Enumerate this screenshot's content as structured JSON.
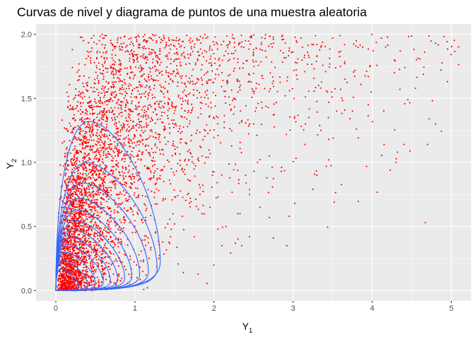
{
  "chart_data": {
    "type": "scatter",
    "title": "Curvas de nivel y diagrama de puntos de una muestra aleatoria",
    "xlabel": {
      "base": "Y",
      "sub": "1"
    },
    "ylabel": {
      "base": "Y",
      "sub": "2"
    },
    "xlim": [
      -0.25,
      5.25
    ],
    "ylim": [
      -0.08,
      2.08
    ],
    "x_ticks": [
      0,
      1,
      2,
      3,
      4,
      5
    ],
    "x_tick_labels": [
      "0",
      "1",
      "2",
      "3",
      "4",
      "5"
    ],
    "y_ticks": [
      0.0,
      0.5,
      1.0,
      1.5,
      2.0
    ],
    "y_tick_labels": [
      "0.0",
      "0.5",
      "1.0",
      "1.5",
      "2.0"
    ],
    "grid": true,
    "colors": {
      "panel": "#ebebeb",
      "grid_major": "#ffffff",
      "points": "#ff0000",
      "contours": "#3366ff"
    },
    "series": [
      {
        "kind": "contour",
        "levels": [
          {
            "x_max": 0.42,
            "y_max": 1.32
          },
          {
            "x_max": 0.38,
            "y_max": 1.0
          },
          {
            "x_max": 0.34,
            "y_max": 0.84
          },
          {
            "x_max": 0.3,
            "y_max": 0.72
          },
          {
            "x_max": 0.27,
            "y_max": 0.63
          },
          {
            "x_max": 0.24,
            "y_max": 0.55
          },
          {
            "x_max": 0.21,
            "y_max": 0.48
          },
          {
            "x_max": 0.18,
            "y_max": 0.42
          },
          {
            "x_max": 0.15,
            "y_max": 0.36
          },
          {
            "x_max": 0.12,
            "y_max": 0.3
          },
          {
            "x_max": 0.09,
            "y_max": 0.24
          },
          {
            "x_max": 0.06,
            "y_max": 0.17
          }
        ],
        "x_extent": [
          1.32,
          1.28,
          1.17,
          1.06,
          0.96,
          0.87,
          0.78,
          0.69,
          0.6,
          0.5,
          0.4,
          0.29
        ]
      },
      {
        "kind": "points",
        "sample_size": 4500,
        "points": [
          [
            0.35,
            1.95
          ],
          [
            0.45,
            1.97
          ],
          [
            0.55,
            1.95
          ],
          [
            0.7,
            1.93
          ],
          [
            0.95,
            1.97
          ],
          [
            1.05,
            1.98
          ],
          [
            1.2,
            1.97
          ],
          [
            1.35,
            1.95
          ],
          [
            1.55,
            1.95
          ],
          [
            1.9,
            1.97
          ],
          [
            2.2,
            1.93
          ],
          [
            2.5,
            1.88
          ],
          [
            2.75,
            1.93
          ],
          [
            2.95,
            1.87
          ],
          [
            3.1,
            1.97
          ],
          [
            3.3,
            1.92
          ],
          [
            3.5,
            1.97
          ],
          [
            3.65,
            1.92
          ],
          [
            4.17,
            1.9
          ],
          [
            4.87,
            1.72
          ],
          [
            4.95,
            1.63
          ],
          [
            3.95,
            1.67
          ],
          [
            3.2,
            1.82
          ],
          [
            2.65,
            1.87
          ],
          [
            2.3,
            1.78
          ],
          [
            2.1,
            1.7
          ],
          [
            1.75,
            1.9
          ],
          [
            1.5,
            1.8
          ],
          [
            1.25,
            1.75
          ],
          [
            4.35,
            1.57
          ],
          [
            4.45,
            1.49
          ],
          [
            3.6,
            1.57
          ],
          [
            3.45,
            1.47
          ],
          [
            3.55,
            1.4
          ],
          [
            3.75,
            1.4
          ],
          [
            3.95,
            1.45
          ],
          [
            2.9,
            1.52
          ],
          [
            2.75,
            1.37
          ],
          [
            2.6,
            1.47
          ],
          [
            2.45,
            1.3
          ],
          [
            2.2,
            1.45
          ],
          [
            3.2,
            1.35
          ],
          [
            3.35,
            1.25
          ],
          [
            3.8,
            1.26
          ],
          [
            3.15,
            1.14
          ],
          [
            3.45,
            1.18
          ],
          [
            4.15,
            1.14
          ],
          [
            4.4,
            1.14
          ],
          [
            4.7,
            1.14
          ],
          [
            4.72,
            1.34
          ],
          [
            4.8,
            1.3
          ],
          [
            4.3,
            1.0
          ],
          [
            4.32,
            1.08
          ],
          [
            3.45,
            1.02
          ],
          [
            3.42,
            0.97
          ],
          [
            3.3,
            0.9
          ],
          [
            3.25,
            0.79
          ],
          [
            2.85,
            0.93
          ],
          [
            2.7,
            1.05
          ],
          [
            2.55,
            1.0
          ],
          [
            2.4,
            0.9
          ],
          [
            2.2,
            0.88
          ],
          [
            2.45,
            0.75
          ],
          [
            2.58,
            0.65
          ],
          [
            2.7,
            0.57
          ],
          [
            2.75,
            0.41
          ],
          [
            2.45,
            0.42
          ],
          [
            2.35,
            0.35
          ],
          [
            2.27,
            0.37
          ],
          [
            2.95,
            0.58
          ],
          [
            3.02,
            0.68
          ],
          [
            3.52,
            0.69
          ],
          [
            4.67,
            0.53
          ],
          [
            2.92,
            0.35
          ],
          [
            2.15,
            0.5
          ],
          [
            2.05,
            0.48
          ],
          [
            1.95,
            0.65
          ],
          [
            2.05,
            0.73
          ],
          [
            1.85,
            0.6
          ],
          [
            1.7,
            0.72
          ],
          [
            1.6,
            0.58
          ],
          [
            1.45,
            0.42
          ],
          [
            1.5,
            0.52
          ],
          [
            1.75,
            0.42
          ],
          [
            1.85,
            1.05
          ],
          [
            1.65,
            1.15
          ],
          [
            1.95,
            1.25
          ],
          [
            1.8,
            1.35
          ],
          [
            1.6,
            1.5
          ],
          [
            1.45,
            1.65
          ],
          [
            1.3,
            1.45
          ],
          [
            1.15,
            1.6
          ],
          [
            0.95,
            1.7
          ],
          [
            0.8,
            1.8
          ],
          [
            0.6,
            1.75
          ],
          [
            0.25,
            1.33
          ],
          [
            0.15,
            1.25
          ],
          [
            0.08,
            1.33
          ],
          [
            0.12,
            1.05
          ],
          [
            2.3,
            0.6
          ],
          [
            2.1,
            0.35
          ],
          [
            1.3,
            0.25
          ],
          [
            1.2,
            0.32
          ],
          [
            1.35,
            0.38
          ],
          [
            1.1,
            0.15
          ],
          [
            1.02,
            0.2
          ]
        ]
      }
    ]
  }
}
